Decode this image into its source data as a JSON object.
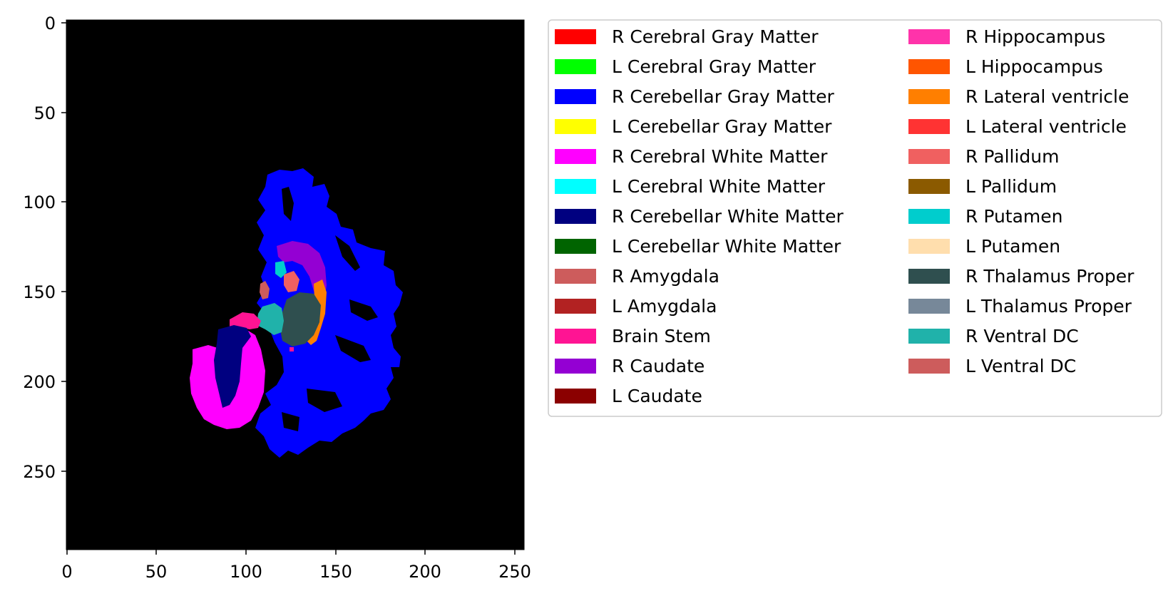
{
  "image": {
    "description_icon": "brain-segmentation-slice",
    "background_color": "#000000",
    "x_ticks": [
      "0",
      "50",
      "100",
      "150",
      "200",
      "250"
    ],
    "y_ticks": [
      "0",
      "50",
      "100",
      "150",
      "200",
      "250"
    ]
  },
  "legend": {
    "columns": [
      [
        {
          "label": "R Cerebral Gray Matter",
          "color": "#ff0000"
        },
        {
          "label": "L Cerebral Gray Matter",
          "color": "#00ff00"
        },
        {
          "label": "R Cerebellar Gray Matter",
          "color": "#0000ff"
        },
        {
          "label": "L Cerebellar Gray Matter",
          "color": "#ffff00"
        },
        {
          "label": "R Cerebral White Matter",
          "color": "#ff00ff"
        },
        {
          "label": "L Cerebral White Matter",
          "color": "#00ffff"
        },
        {
          "label": "R Cerebellar White Matter",
          "color": "#000080"
        },
        {
          "label": "L Cerebellar White Matter",
          "color": "#006400"
        },
        {
          "label": "R Amygdala",
          "color": "#cd5c5c"
        },
        {
          "label": "L Amygdala",
          "color": "#b22222"
        },
        {
          "label": "Brain Stem",
          "color": "#ff1493"
        },
        {
          "label": "R Caudate",
          "color": "#9400d3"
        },
        {
          "label": "L Caudate",
          "color": "#8b0000"
        }
      ],
      [
        {
          "label": "R Hippocampus",
          "color": "#ff33aa"
        },
        {
          "label": "L Hippocampus",
          "color": "#ff5500"
        },
        {
          "label": "R Lateral ventricle",
          "color": "#ff7f00"
        },
        {
          "label": "L Lateral ventricle",
          "color": "#ff3333"
        },
        {
          "label": "R Pallidum",
          "color": "#f06060"
        },
        {
          "label": "L Pallidum",
          "color": "#8b5a00"
        },
        {
          "label": "R Putamen",
          "color": "#00cdcd"
        },
        {
          "label": "L Putamen",
          "color": "#ffdead"
        },
        {
          "label": "R Thalamus Proper",
          "color": "#2f4f4f"
        },
        {
          "label": "L Thalamus Proper",
          "color": "#778899"
        },
        {
          "label": "R Ventral DC",
          "color": "#20b2aa"
        },
        {
          "label": "L Ventral DC",
          "color": "#cd5c5c"
        }
      ]
    ]
  }
}
